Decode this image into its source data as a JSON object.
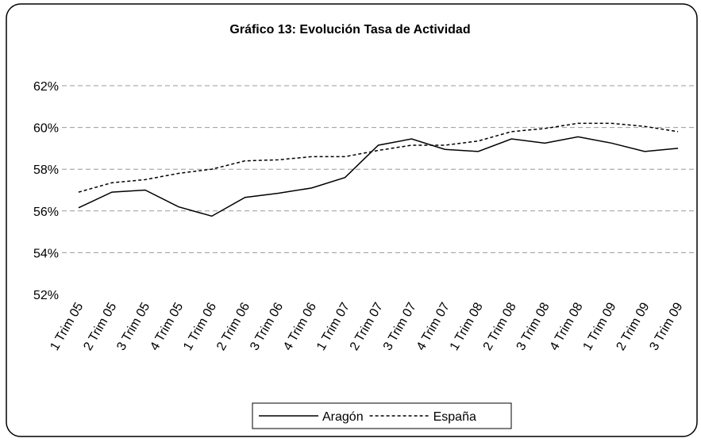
{
  "chart_data": {
    "type": "line",
    "title": "Gráfico 13: Evolución Tasa de Actividad",
    "categories": [
      "1 Trim 05",
      "2 Trim 05",
      "3 Trim 05",
      "4 Trim 05",
      "1 Trim 06",
      "2 Trim 06",
      "3 Trim 06",
      "4 Trim 06",
      "1 Trim 07",
      "2 Trim 07",
      "3 Trim 07",
      "4 Trim 07",
      "1 Trim 08",
      "2 Trim 08",
      "3 Trim 08",
      "4 Trim 08",
      "1 Trim 09",
      "2 Trim 09",
      "3 Trim 09"
    ],
    "series": [
      {
        "name": "Aragón",
        "color": "#000000",
        "dash": "solid",
        "values": [
          56.15,
          56.9,
          57.0,
          56.2,
          55.75,
          56.65,
          56.85,
          57.1,
          57.6,
          59.15,
          59.45,
          58.95,
          58.85,
          59.45,
          59.25,
          59.55,
          59.25,
          58.85,
          59.0
        ]
      },
      {
        "name": "España",
        "color": "#000000",
        "dash": "dotted",
        "values": [
          56.9,
          57.35,
          57.5,
          57.8,
          58.0,
          58.4,
          58.45,
          58.6,
          58.6,
          58.9,
          59.15,
          59.15,
          59.35,
          59.8,
          59.95,
          60.2,
          60.2,
          60.05,
          59.8
        ]
      }
    ],
    "ylim": [
      52,
      62
    ],
    "yticks": [
      {
        "value": 52,
        "label": "52%"
      },
      {
        "value": 54,
        "label": "54%"
      },
      {
        "value": 56,
        "label": "56%"
      },
      {
        "value": 58,
        "label": "58%"
      },
      {
        "value": 60,
        "label": "60%"
      },
      {
        "value": 62,
        "label": "62%"
      }
    ],
    "grid": true
  }
}
